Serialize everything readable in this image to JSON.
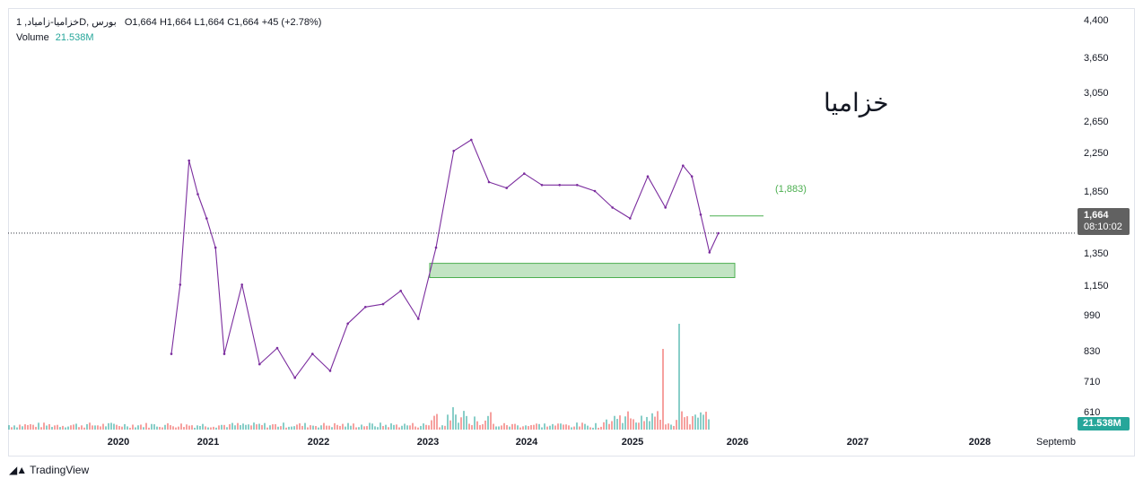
{
  "legend": {
    "symbol": "1 ,خزامیا-زامیادD, بورس",
    "ohlc": "O1,664  H1,664  L1,664  C1,664  +45 (+2.78%)",
    "volume_label": "Volume",
    "volume_value": "21.538M"
  },
  "watermark": "خزامیا",
  "target_label": "(1,883)",
  "last_price": "1,664",
  "countdown": "08:10:02",
  "volume_badge": "21.538M",
  "branding": "TradingView",
  "price_axis": [
    "4,400",
    "3,650",
    "3,050",
    "2,650",
    "2,250",
    "1,850",
    "1,350",
    "1,150",
    "990",
    "830",
    "710",
    "610"
  ],
  "time_axis": [
    "2020",
    "2021",
    "2022",
    "2023",
    "2024",
    "2025",
    "2026",
    "2027",
    "2028",
    "Septemb"
  ],
  "colors": {
    "price_line": "#7b2d9e",
    "support_fill": "#b7dfb9",
    "support_border": "#4caf50",
    "volume_up": "#26a69a",
    "volume_down": "#ef5350",
    "volume_badge": "#26a69a",
    "last_badge": "#616161",
    "target_line": "#4caf50"
  },
  "chart_data": {
    "type": "line",
    "title": "",
    "ylabel": "",
    "xlabel": "",
    "log_scale": true,
    "ylim": [
      560,
      4600
    ],
    "grid": false,
    "x": [
      "2020-07",
      "2020-08",
      "2020-09",
      "2020-10",
      "2020-11",
      "2020-12",
      "2021-01",
      "2021-03",
      "2021-05",
      "2021-07",
      "2021-09",
      "2021-11",
      "2022-01",
      "2022-03",
      "2022-05",
      "2022-07",
      "2022-09",
      "2022-11",
      "2023-01",
      "2023-03",
      "2023-05",
      "2023-07",
      "2023-09",
      "2023-11",
      "2024-01",
      "2024-03",
      "2024-05",
      "2024-07",
      "2024-09",
      "2024-11",
      "2025-01",
      "2025-03",
      "2025-05",
      "2025-06",
      "2025-07",
      "2025-08",
      "2025-09"
    ],
    "series": [
      {
        "values": [
          700,
          1150,
          2800,
          2200,
          1850,
          1500,
          700,
          1150,
          650,
          730,
          590,
          700,
          620,
          870,
          980,
          1000,
          1100,
          900,
          1500,
          3000,
          3250,
          2400,
          2300,
          2550,
          2350,
          2350,
          2350,
          2250,
          2000,
          1850,
          2500,
          2000,
          2700,
          2500,
          1900,
          1450,
          1664
        ]
      }
    ],
    "support_zone": [
      1210,
      1340
    ],
    "target": 1883,
    "last": 1664
  }
}
